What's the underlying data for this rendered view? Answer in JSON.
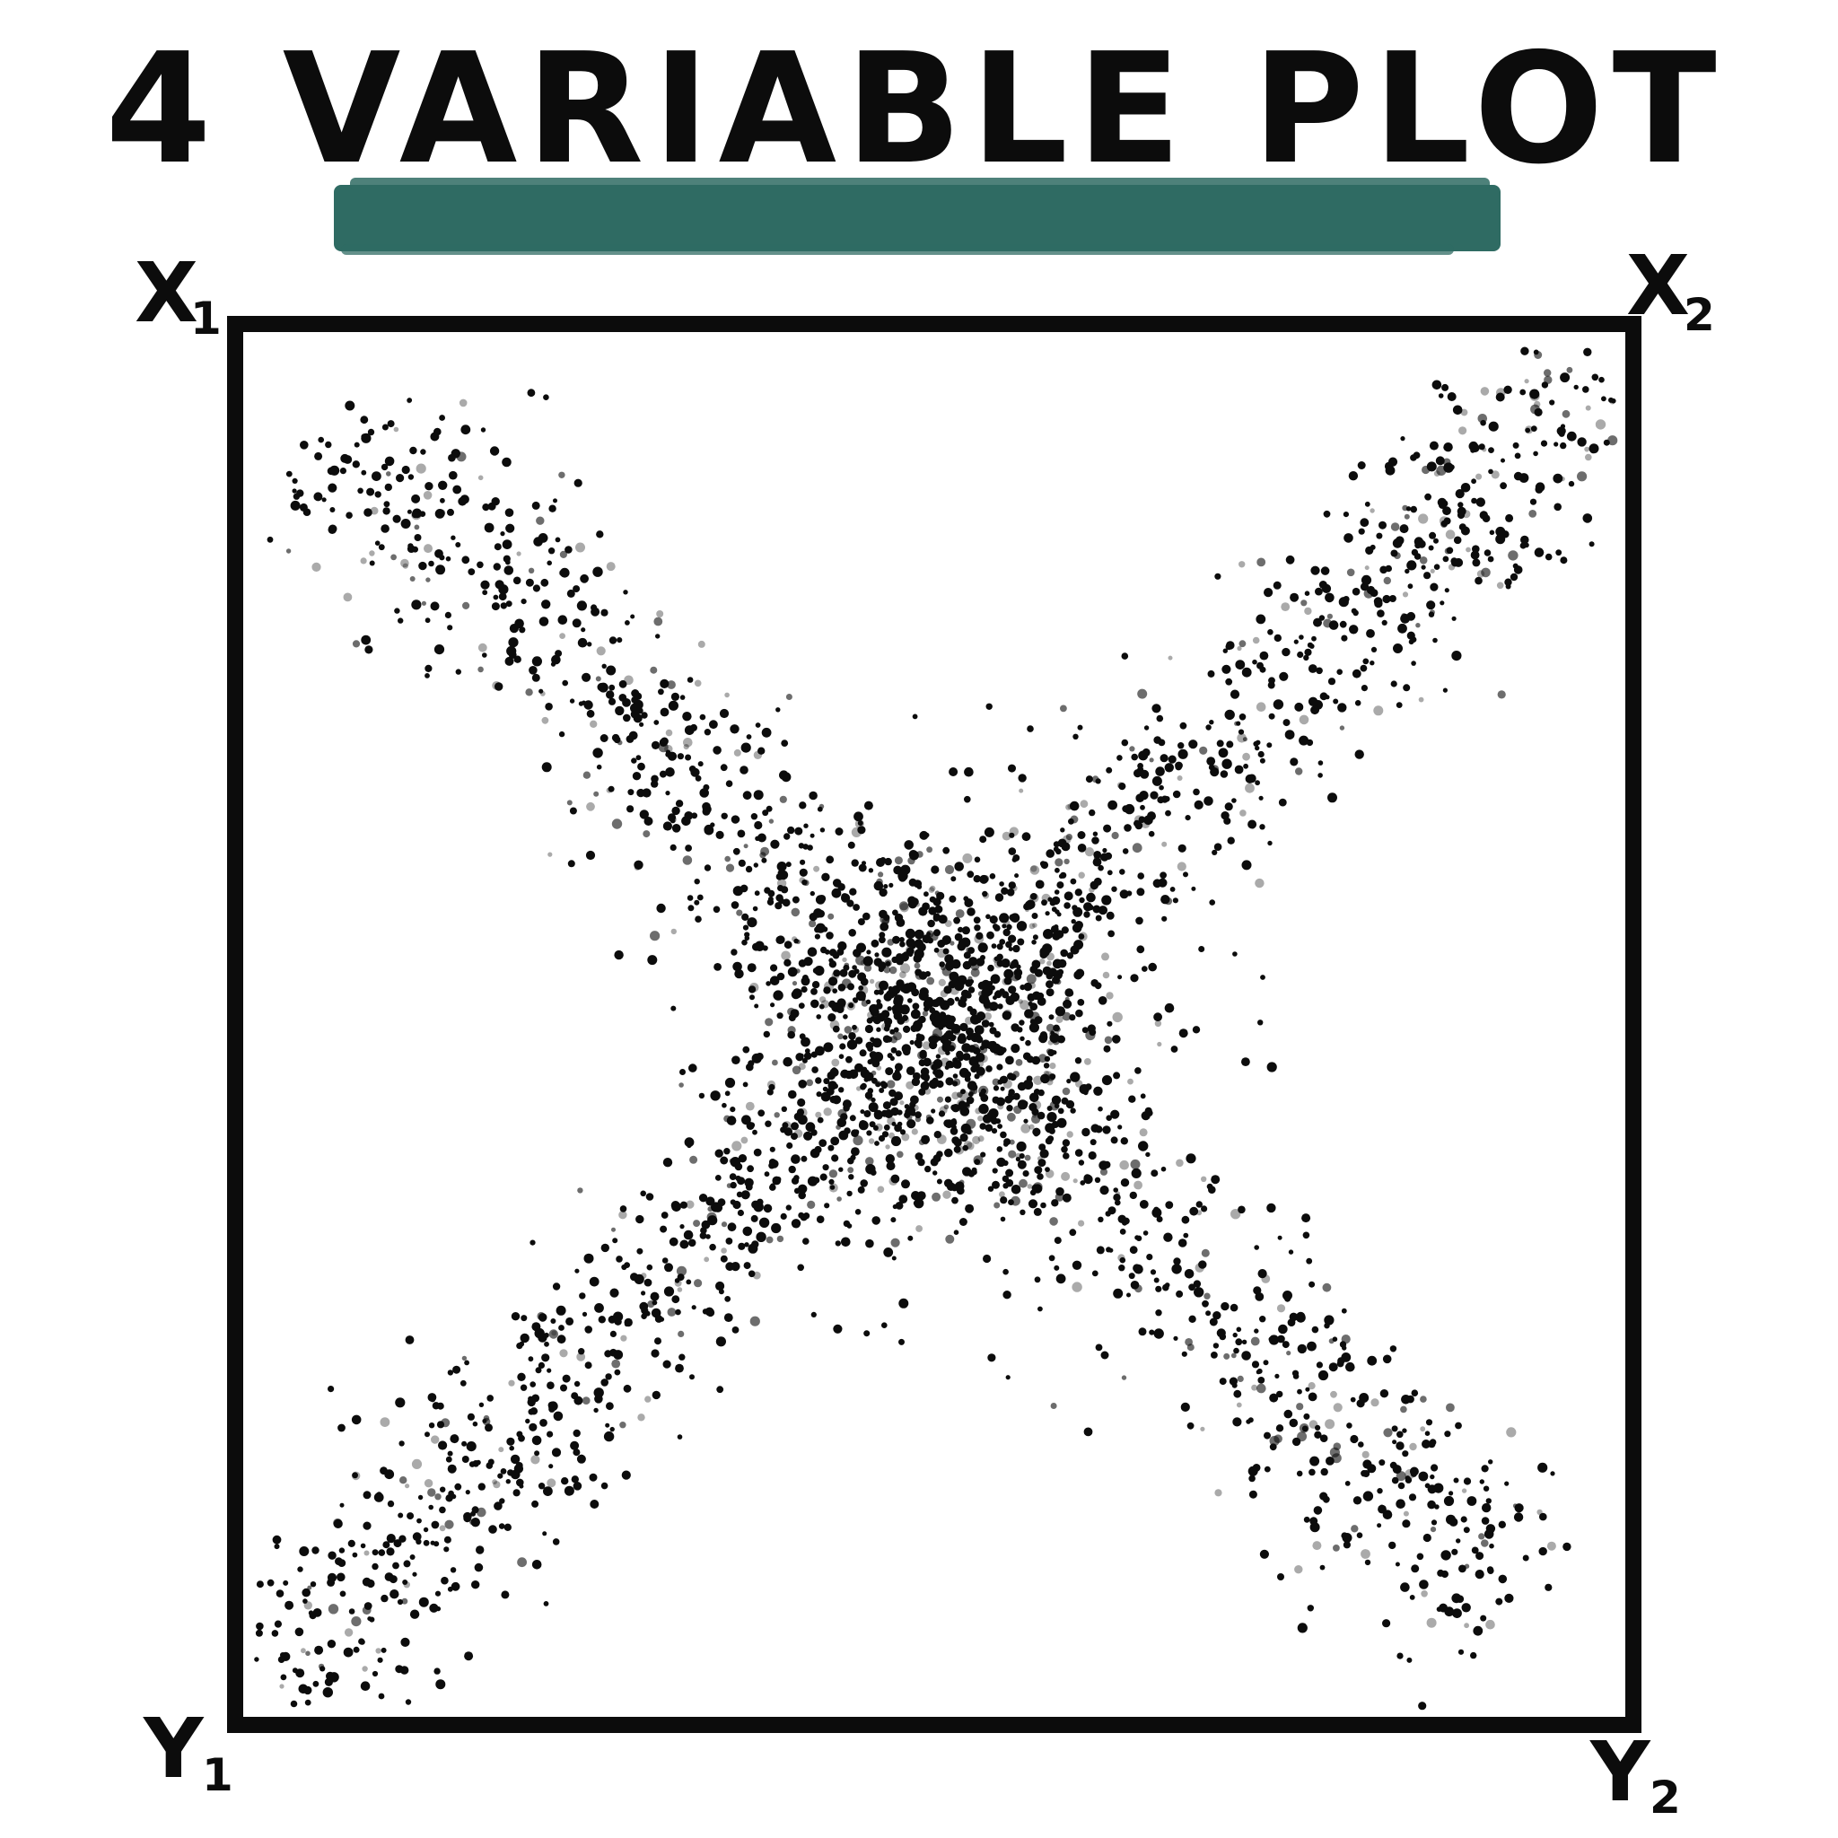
{
  "title": "4 VARIABLE PLOT",
  "accent_color": "#2f6b63",
  "ink_color": "#0c0c0c",
  "chart_data": {
    "type": "scatter",
    "title": "4 VARIABLE PLOT",
    "xlabel": "",
    "ylabel": "",
    "grid": false,
    "corner_labels": {
      "top_left": {
        "var": "X",
        "sub": "1"
      },
      "top_right": {
        "var": "X",
        "sub": "2"
      },
      "bottom_left": {
        "var": "Y",
        "sub": "1"
      },
      "bottom_right": {
        "var": "Y",
        "sub": "2"
      }
    },
    "series": [
      {
        "name": "",
        "description_of_shape": "cloud along the X1 to Y2 diagonal",
        "start": [
          0.07,
          0.93
        ],
        "end": [
          0.92,
          0.08
        ],
        "spread": 0.045,
        "count": 1100
      },
      {
        "name": "",
        "description_of_shape": "cloud along the Y1 to X2 diagonal",
        "start": [
          0.02,
          0.03
        ],
        "end": [
          0.98,
          0.97
        ],
        "spread": 0.045,
        "count": 1300
      },
      {
        "name": "",
        "description_of_shape": "dense center cluster",
        "center": [
          0.5,
          0.5
        ],
        "spread": 0.08,
        "count": 900
      }
    ]
  }
}
